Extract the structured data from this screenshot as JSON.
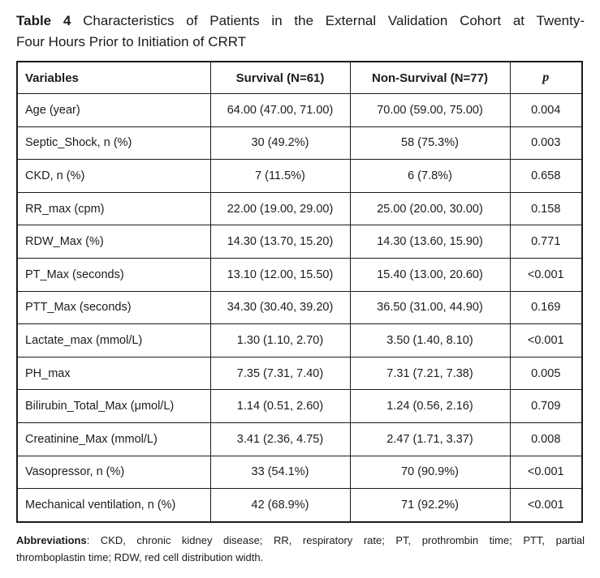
{
  "title": {
    "bold_label": "Table 4",
    "line1_rest": "Characteristics of Patients in the External Validation Cohort at Twenty-",
    "line2": "Four Hours Prior to Initiation of CRRT"
  },
  "table": {
    "headers": [
      "Variables",
      "Survival (N=61)",
      "Non-Survival (N=77)",
      "p"
    ],
    "rows": [
      [
        "Age (year)",
        "64.00 (47.00, 71.00)",
        "70.00 (59.00, 75.00)",
        "0.004"
      ],
      [
        "Septic_Shock, n (%)",
        "30 (49.2%)",
        "58 (75.3%)",
        "0.003"
      ],
      [
        "CKD, n (%)",
        "7 (11.5%)",
        "6 (7.8%)",
        "0.658"
      ],
      [
        "RR_max (cpm)",
        "22.00 (19.00, 29.00)",
        "25.00 (20.00, 30.00)",
        "0.158"
      ],
      [
        "RDW_Max (%)",
        "14.30 (13.70, 15.20)",
        "14.30 (13.60, 15.90)",
        "0.771"
      ],
      [
        "PT_Max (seconds)",
        "13.10 (12.00, 15.50)",
        "15.40 (13.00, 20.60)",
        "<0.001"
      ],
      [
        "PTT_Max (seconds)",
        "34.30 (30.40, 39.20)",
        "36.50 (31.00, 44.90)",
        "0.169"
      ],
      [
        "Lactate_max (mmol/L)",
        "1.30 (1.10, 2.70)",
        "3.50 (1.40, 8.10)",
        "<0.001"
      ],
      [
        "PH_max",
        "7.35 (7.31, 7.40)",
        "7.31 (7.21, 7.38)",
        "0.005"
      ],
      [
        "Bilirubin_Total_Max (μmol/L)",
        "1.14 (0.51, 2.60)",
        "1.24 (0.56, 2.16)",
        "0.709"
      ],
      [
        "Creatinine_Max (mmol/L)",
        "3.41 (2.36, 4.75)",
        "2.47 (1.71, 3.37)",
        "0.008"
      ],
      [
        "Vasopressor, n (%)",
        "33 (54.1%)",
        "70 (90.9%)",
        "<0.001"
      ],
      [
        "Mechanical ventilation, n (%)",
        "42 (68.9%)",
        "71 (92.2%)",
        "<0.001"
      ]
    ]
  },
  "footnote": {
    "bold_label": "Abbreviations",
    "line1_rest": ": CKD, chronic kidney disease; RR, respiratory rate; PT, prothrombin time; PTT, partial",
    "line2": "thromboplastin time; RDW, red cell distribution width."
  },
  "colors": {
    "text": "#1c1c1c",
    "border": "#1b1b1b",
    "background": "#ffffff"
  }
}
